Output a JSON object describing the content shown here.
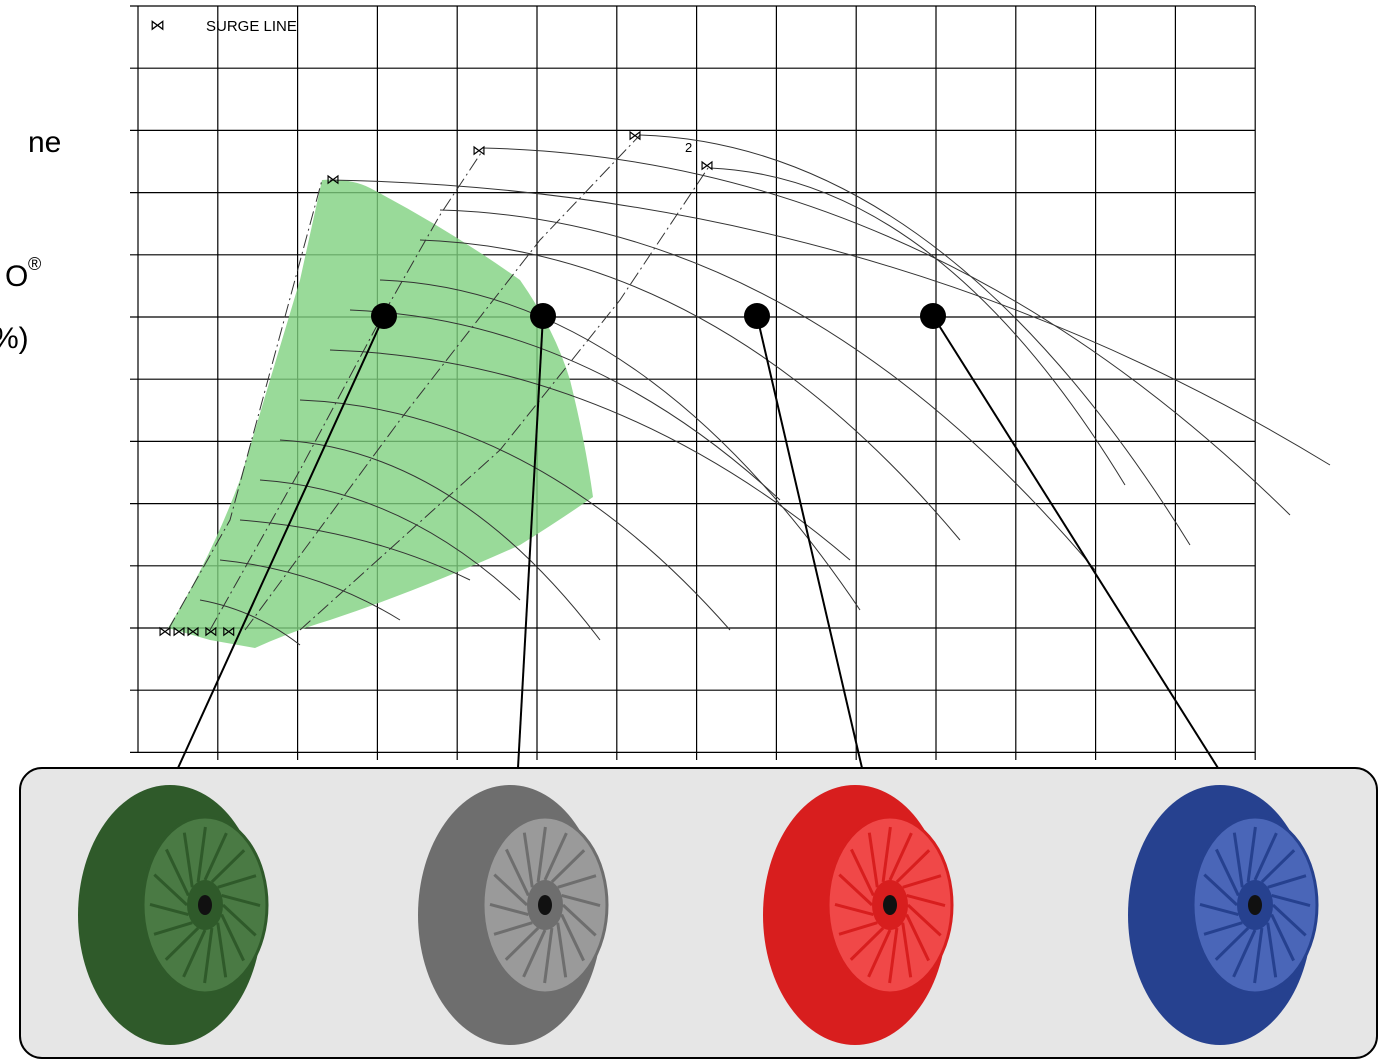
{
  "map": {
    "legend": "SURGE LINE",
    "curve_label": "2"
  },
  "left_text": [
    "ne",
    "O",
    "®",
    "%)"
  ]
}
